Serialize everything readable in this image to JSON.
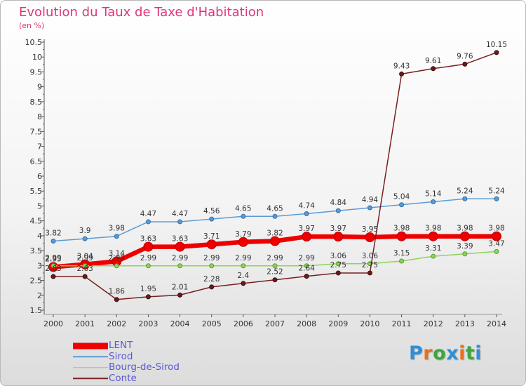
{
  "title": "Evolution du Taux de Taxe d'Habitation",
  "subtitle": "(en %)",
  "logo": {
    "text": "Proxiti",
    "colors": [
      "#2f8fd8",
      "#e8711b",
      "#3aa83a",
      "#2f8fd8",
      "#e8711b",
      "#3aa83a",
      "#2f8fd8"
    ]
  },
  "chart_data": {
    "type": "line",
    "title": "Evolution du Taux de Taxe d'Habitation",
    "ylabel": "(en %)",
    "xlabel": "",
    "x": [
      "2000",
      "2001",
      "2002",
      "2003",
      "2004",
      "2005",
      "2006",
      "2007",
      "2008",
      "2009",
      "2010",
      "2011",
      "2012",
      "2013",
      "2014"
    ],
    "yticks": [
      "1.5",
      "2",
      "2.5",
      "3",
      "3.5",
      "4",
      "4.5",
      "5",
      "5.5",
      "6",
      "6.5",
      "7",
      "7.5",
      "8",
      "8.5",
      "9",
      "9.5",
      "10",
      "10.5"
    ],
    "ylim": [
      1.5,
      10.5
    ],
    "grid": false,
    "legend_position": "bottom-left",
    "series": [
      {
        "name": "LENT",
        "color": "#ee0000",
        "values": [
          2.95,
          3.04,
          3.14,
          3.63,
          3.63,
          3.71,
          3.79,
          3.82,
          3.97,
          3.97,
          3.95,
          3.98,
          3.98,
          3.98,
          3.98
        ],
        "labels": [
          "2.95",
          "3.04",
          "3.14",
          "3.63",
          "3.63",
          "3.71",
          "3.79",
          "3.82",
          "3.97",
          "3.97",
          "3.95",
          "3.98",
          "3.98",
          "3.98",
          "3.98"
        ]
      },
      {
        "name": "Sirod",
        "color": "#5b9bd5",
        "values": [
          3.82,
          3.9,
          3.98,
          4.47,
          4.47,
          4.56,
          4.65,
          4.65,
          4.74,
          4.84,
          4.94,
          5.04,
          5.14,
          5.24,
          5.24
        ],
        "labels": [
          "3.82",
          "3.9",
          "3.98",
          "4.47",
          "4.47",
          "4.56",
          "4.65",
          "4.65",
          "4.74",
          "4.84",
          "4.94",
          "5.04",
          "5.14",
          "5.24",
          "5.24"
        ]
      },
      {
        "name": "Bourg-de-Sirod",
        "color": "#8fd35a",
        "values": [
          2.99,
          2.99,
          2.99,
          2.99,
          2.99,
          2.99,
          2.99,
          2.99,
          2.99,
          3.06,
          3.06,
          3.15,
          3.31,
          3.39,
          3.47
        ],
        "labels": [
          "2.99",
          "2.99",
          "2.99",
          "2.99",
          "2.99",
          "2.99",
          "2.99",
          "2.99",
          "2.99",
          "3.06",
          "3.06",
          "3.15",
          "3.31",
          "3.39",
          "3.47"
        ]
      },
      {
        "name": "Conte",
        "color": "#7a1f1f",
        "values": [
          2.63,
          2.63,
          1.86,
          1.95,
          2.01,
          2.28,
          2.4,
          2.52,
          2.64,
          2.75,
          2.75,
          9.43,
          9.61,
          9.76,
          10.15
        ],
        "labels": [
          "2.63",
          "2.63",
          "1.86",
          "1.95",
          "2.01",
          "2.28",
          "2.4",
          "2.52",
          "2.64",
          "2.75",
          "2.75",
          "9.43",
          "9.61",
          "9.76",
          "10.15"
        ]
      }
    ]
  }
}
